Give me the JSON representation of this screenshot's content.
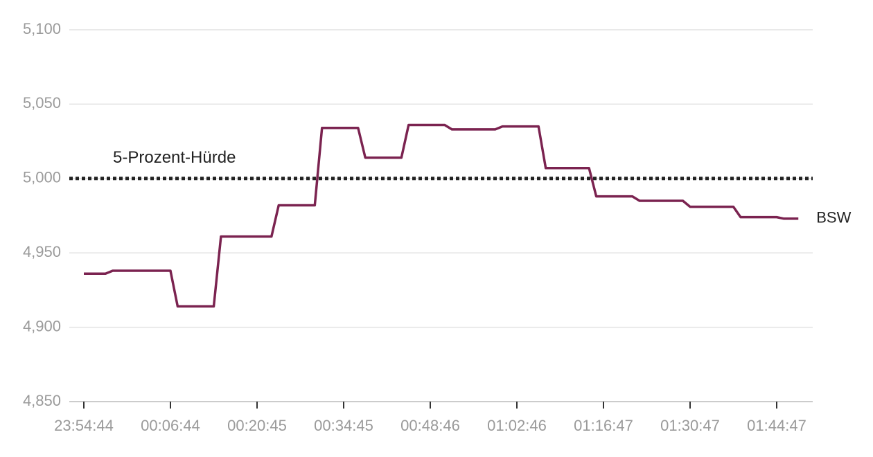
{
  "chart_data": {
    "type": "line",
    "categories": [
      "23:54:44",
      null,
      null,
      null,
      null,
      null,
      null,
      null,
      null,
      null,
      null,
      null,
      "00:06:44",
      null,
      null,
      null,
      null,
      null,
      null,
      null,
      null,
      null,
      null,
      null,
      "00:20:45",
      null,
      null,
      null,
      null,
      null,
      null,
      null,
      null,
      null,
      null,
      null,
      "00:34:45",
      null,
      null,
      null,
      null,
      null,
      null,
      null,
      null,
      null,
      null,
      null,
      "00:48:46",
      null,
      null,
      null,
      null,
      null,
      null,
      null,
      null,
      null,
      null,
      null,
      "01:02:46",
      null,
      null,
      null,
      null,
      null,
      null,
      null,
      null,
      null,
      null,
      null,
      "01:16:47",
      null,
      null,
      null,
      null,
      null,
      null,
      null,
      null,
      null,
      null,
      null,
      "01:30:47",
      null,
      null,
      null,
      null,
      null,
      null,
      null,
      null,
      null,
      null,
      null,
      "01:44:47",
      null,
      null,
      null
    ],
    "series": [
      {
        "name": "BSW",
        "color": "#7b2350",
        "values": [
          4.936,
          4.936,
          4.936,
          4.936,
          4.938,
          4.938,
          4.938,
          4.938,
          4.938,
          4.938,
          4.938,
          4.938,
          4.938,
          4.914,
          4.914,
          4.914,
          4.914,
          4.914,
          4.914,
          4.961,
          4.961,
          4.961,
          4.961,
          4.961,
          4.961,
          4.961,
          4.961,
          4.982,
          4.982,
          4.982,
          4.982,
          4.982,
          4.982,
          5.034,
          5.034,
          5.034,
          5.034,
          5.034,
          5.034,
          5.014,
          5.014,
          5.014,
          5.014,
          5.014,
          5.014,
          5.036,
          5.036,
          5.036,
          5.036,
          5.036,
          5.036,
          5.033,
          5.033,
          5.033,
          5.033,
          5.033,
          5.033,
          5.033,
          5.035,
          5.035,
          5.035,
          5.035,
          5.035,
          5.035,
          5.007,
          5.007,
          5.007,
          5.007,
          5.007,
          5.007,
          5.007,
          4.988,
          4.988,
          4.988,
          4.988,
          4.988,
          4.988,
          4.985,
          4.985,
          4.985,
          4.985,
          4.985,
          4.985,
          4.985,
          4.981,
          4.981,
          4.981,
          4.981,
          4.981,
          4.981,
          4.981,
          4.974,
          4.974,
          4.974,
          4.974,
          4.974,
          4.974,
          4.973,
          4.973,
          4.973
        ]
      }
    ],
    "reference_line": {
      "value": 5.0,
      "label": "5-Prozent-Hürde",
      "color": "#222222"
    },
    "ylim": [
      4.85,
      5.1
    ],
    "yticks": [
      {
        "value": 4.85,
        "label": "4,850"
      },
      {
        "value": 4.9,
        "label": "4,900"
      },
      {
        "value": 4.95,
        "label": "4,950"
      },
      {
        "value": 5.0,
        "label": "5,000"
      },
      {
        "value": 5.05,
        "label": "5,050"
      },
      {
        "value": 5.1,
        "label": "5,100"
      }
    ],
    "grid": true
  }
}
